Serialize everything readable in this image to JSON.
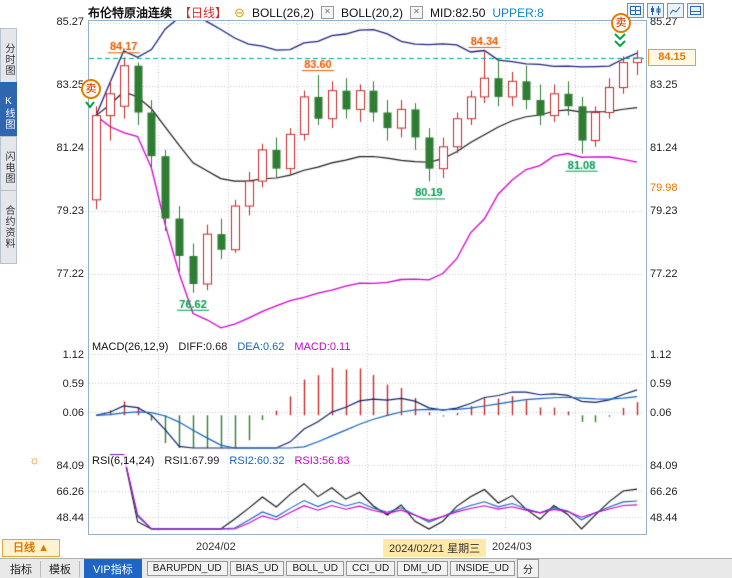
{
  "header": {
    "title": "布伦特原油连续",
    "period_tag": "【日线】",
    "indicators": [
      {
        "label": "BOLL(26,2)"
      },
      {
        "label": "BOLL(20,2)"
      }
    ],
    "mid_value": "MID:82.50",
    "upper_value": "UPPER:8"
  },
  "sidebar": {
    "items": [
      {
        "label": "分时图",
        "active": false
      },
      {
        "label": "K线图",
        "active": true
      },
      {
        "label": "闪电图",
        "active": false
      },
      {
        "label": "合约资料",
        "active": false
      }
    ]
  },
  "toolbar_icons": [
    {
      "name": "grid-layout-icon"
    },
    {
      "name": "candle-chart-icon"
    },
    {
      "name": "line-chart-icon"
    },
    {
      "name": "panel-layout-icon"
    }
  ],
  "signals": {
    "sell_label": "卖"
  },
  "price_axis": {
    "left": [
      "85.27",
      "83.25",
      "81.24",
      "79.23",
      "77.22"
    ],
    "right": [
      "85.27",
      "83.25",
      "81.24",
      "79.23",
      "77.22"
    ],
    "lower_band_value": "79.98",
    "current_price_label": "84.15"
  },
  "macd_panel": {
    "title": "MACD(26,12,9)",
    "diff_label": "DIFF:0.68",
    "dea_label": "DEA:0.62",
    "macd_label": "MACD:0.11",
    "axis": [
      "1.12",
      "0.59",
      "0.06"
    ]
  },
  "rsi_panel": {
    "title": "RSI(6,14,24)",
    "rsi1_label": "RSI1:67.99",
    "rsi2_label": "RSI2:60.32",
    "rsi3_label": "RSI3:56.83",
    "axis": [
      "84.09",
      "66.26",
      "48.44"
    ]
  },
  "xaxis": {
    "month_left": "2024/02",
    "highlight_date": "2024/02/21 星期三",
    "month_right": "2024/03",
    "period_button": "日线 ▲"
  },
  "bottom_bar": {
    "items": [
      {
        "label": "指标"
      },
      {
        "label": "模板"
      },
      {
        "label": "VIP指标",
        "active": true
      },
      {
        "label": "BARUPDN_UD"
      },
      {
        "label": "BIAS_UD"
      },
      {
        "label": "BOLL_UD"
      },
      {
        "label": "CCI_UD"
      },
      {
        "label": "DMI_UD"
      },
      {
        "label": "INSIDE_UD"
      },
      {
        "label": "分"
      }
    ]
  },
  "colors": {
    "up": "#c62828",
    "down": "#2e7d32",
    "boll_upper": "#1a237e",
    "boll_mid": "#1b1b1b",
    "boll_lower": "#d500d5",
    "price_line": "#00a5a5",
    "high_label": "#e65c00",
    "low_label": "#00994d",
    "diff_line": "#10216b",
    "dea_line": "#1565c0",
    "hist_pos": "#c62828",
    "hist_neg": "#2e7d32",
    "rsi1": "#111111",
    "rsi2": "#1565c0",
    "rsi3": "#cc00cc",
    "accent_blue": "#2f66b0",
    "current_price": "#e07800"
  },
  "chart_data": {
    "type": "candlestick",
    "symbol": "布伦特原油连续",
    "period": "日线",
    "price_gridlines": [
      85.27,
      83.25,
      81.24,
      79.23,
      77.22
    ],
    "current_price": 84.15,
    "lower_band_right_value": 79.98,
    "x_labels": [
      "2024/02",
      "2024/03"
    ],
    "highlight_date": "2024/02/21 星期三",
    "candles": [
      [
        79.6,
        82.6,
        79.3,
        82.3
      ],
      [
        82.3,
        83.4,
        81.5,
        83.0
      ],
      [
        82.6,
        84.17,
        82.2,
        83.9
      ],
      [
        83.9,
        84.0,
        82.0,
        82.4
      ],
      [
        82.4,
        82.8,
        80.6,
        81.0
      ],
      [
        81.0,
        81.2,
        78.6,
        79.0
      ],
      [
        79.0,
        79.4,
        77.3,
        77.8
      ],
      [
        77.8,
        78.2,
        76.62,
        76.9
      ],
      [
        76.9,
        78.8,
        76.7,
        78.5
      ],
      [
        78.5,
        79.0,
        77.7,
        78.0
      ],
      [
        78.0,
        79.6,
        77.9,
        79.4
      ],
      [
        79.4,
        80.5,
        79.1,
        80.2
      ],
      [
        80.2,
        81.4,
        80.0,
        81.2
      ],
      [
        81.2,
        81.6,
        80.3,
        80.6
      ],
      [
        80.6,
        81.9,
        80.4,
        81.7
      ],
      [
        81.7,
        83.1,
        81.5,
        82.9
      ],
      [
        82.9,
        83.6,
        82.0,
        82.2
      ],
      [
        82.2,
        83.4,
        81.9,
        83.1
      ],
      [
        83.1,
        83.5,
        82.2,
        82.5
      ],
      [
        82.5,
        83.3,
        82.1,
        83.1
      ],
      [
        83.1,
        83.4,
        82.1,
        82.4
      ],
      [
        82.4,
        82.8,
        81.5,
        81.9
      ],
      [
        81.9,
        82.8,
        81.6,
        82.5
      ],
      [
        82.5,
        82.7,
        81.2,
        81.6
      ],
      [
        81.6,
        81.9,
        80.19,
        80.6
      ],
      [
        80.6,
        81.6,
        80.3,
        81.3
      ],
      [
        81.3,
        82.4,
        81.1,
        82.2
      ],
      [
        82.2,
        83.1,
        82.0,
        82.9
      ],
      [
        82.9,
        84.34,
        82.7,
        83.5
      ],
      [
        83.5,
        84.1,
        82.6,
        82.9
      ],
      [
        82.9,
        83.7,
        82.6,
        83.4
      ],
      [
        83.4,
        83.9,
        82.5,
        82.8
      ],
      [
        82.8,
        83.3,
        82.0,
        82.3
      ],
      [
        82.3,
        83.3,
        82.1,
        83.0
      ],
      [
        83.0,
        83.4,
        82.3,
        82.6
      ],
      [
        82.6,
        82.9,
        81.08,
        81.5
      ],
      [
        81.5,
        82.6,
        81.3,
        82.4
      ],
      [
        82.4,
        83.5,
        82.2,
        83.2
      ],
      [
        83.2,
        84.2,
        83.0,
        84.0
      ],
      [
        84.0,
        84.4,
        83.6,
        84.15
      ]
    ],
    "annotations": [
      {
        "text": "84.17",
        "index": 2,
        "price": 84.17,
        "kind": "high"
      },
      {
        "text": "76.62",
        "index": 7,
        "price": 76.62,
        "kind": "low"
      },
      {
        "text": "83.60",
        "index": 16,
        "price": 83.6,
        "kind": "high"
      },
      {
        "text": "80.19",
        "index": 24,
        "price": 80.19,
        "kind": "low"
      },
      {
        "text": "84.34",
        "index": 28,
        "price": 84.34,
        "kind": "high"
      },
      {
        "text": "81.08",
        "index": 35,
        "price": 81.08,
        "kind": "low"
      }
    ],
    "macd": {
      "params": [
        26,
        12,
        9
      ],
      "diff": 0.68,
      "dea": 0.62,
      "macd": 0.11,
      "gridlines": [
        1.12,
        0.59,
        0.06
      ]
    },
    "rsi": {
      "params": [
        6,
        14,
        24
      ],
      "rsi1": 67.99,
      "rsi2": 60.32,
      "rsi3": 56.83,
      "gridlines": [
        84.09,
        66.26,
        48.44
      ]
    }
  }
}
